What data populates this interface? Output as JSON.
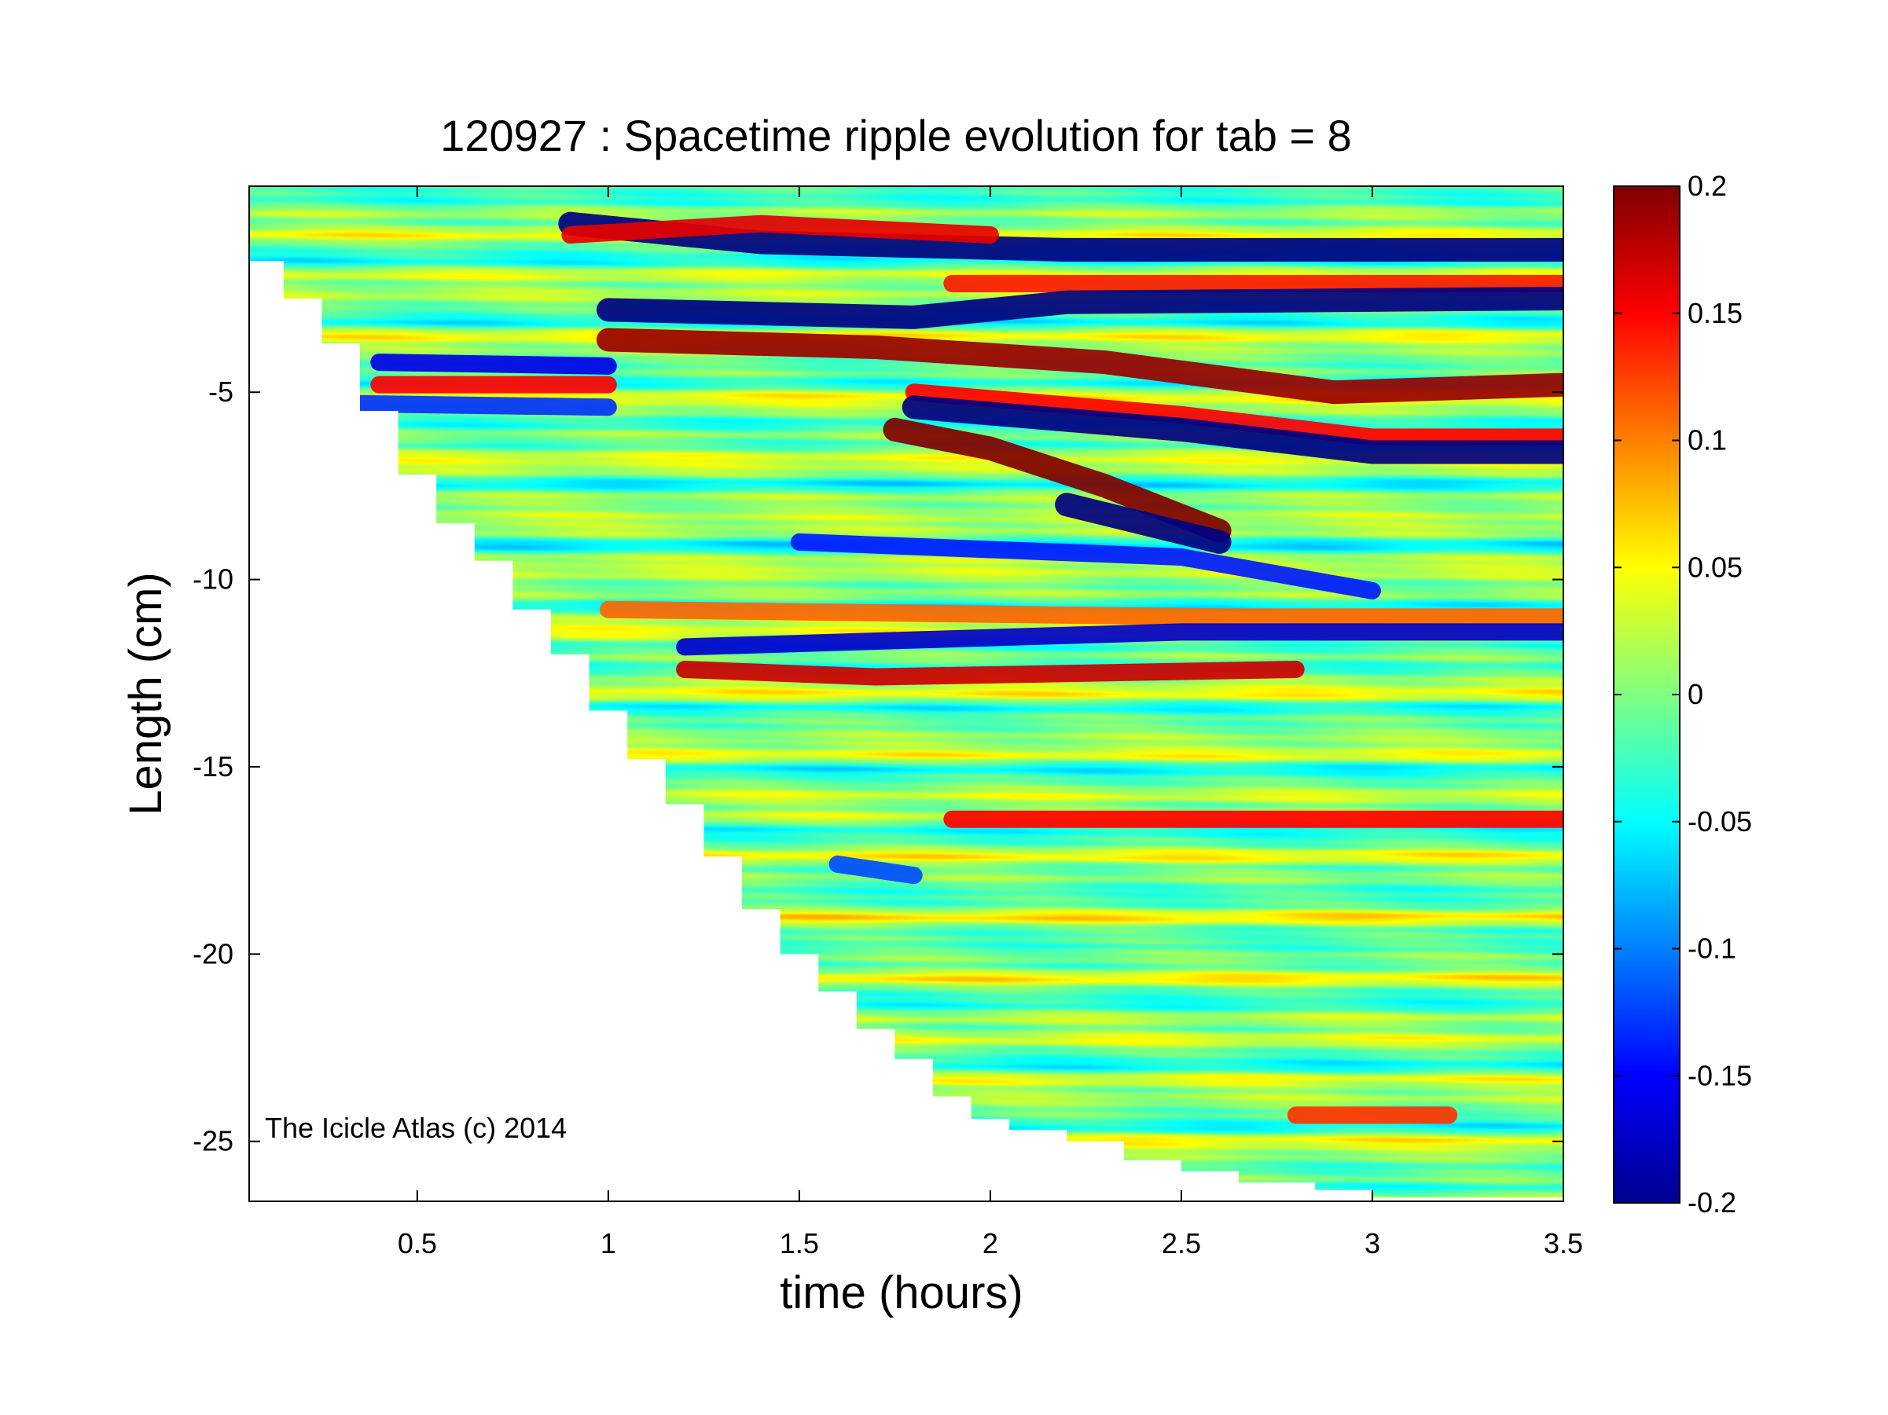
{
  "chart_data": {
    "type": "heatmap",
    "title": "120927 : Spacetime ripple evolution for tab = 8",
    "xlabel": "time (hours)",
    "ylabel": "Length (cm)",
    "annotation": "The Icicle Atlas (c) 2014",
    "xlim": [
      0.06,
      3.5
    ],
    "ylim": [
      -26.6,
      0.5
    ],
    "x_ticks": [
      0.5,
      1,
      1.5,
      2,
      2.5,
      3,
      3.5
    ],
    "x_tick_labels": [
      "0.5",
      "1",
      "1.5",
      "2",
      "2.5",
      "3",
      "3.5"
    ],
    "y_ticks": [
      -5,
      -10,
      -15,
      -20,
      -25
    ],
    "y_tick_labels": [
      "-5",
      "-10",
      "-15",
      "-20",
      "-25"
    ],
    "colorbar": {
      "colormap": "jet",
      "range": [
        -0.2,
        0.2
      ],
      "ticks": [
        0.2,
        0.15,
        0.1,
        0.05,
        0,
        -0.05,
        -0.1,
        -0.15,
        -0.2
      ],
      "tick_labels": [
        "0.2",
        "0.15",
        "0.1",
        "0.05",
        "0",
        "-0.05",
        "-0.1",
        "-0.15",
        "-0.2"
      ]
    },
    "boundary_length_vs_time": [
      [
        0.06,
        -1.5
      ],
      [
        0.15,
        -2.5
      ],
      [
        0.25,
        -3.7
      ],
      [
        0.35,
        -5.5
      ],
      [
        0.45,
        -7.2
      ],
      [
        0.55,
        -8.5
      ],
      [
        0.65,
        -9.5
      ],
      [
        0.75,
        -10.8
      ],
      [
        0.85,
        -12.0
      ],
      [
        0.95,
        -13.5
      ],
      [
        1.05,
        -14.8
      ],
      [
        1.15,
        -16.0
      ],
      [
        1.25,
        -17.4
      ],
      [
        1.35,
        -18.8
      ],
      [
        1.45,
        -20.0
      ],
      [
        1.55,
        -21.0
      ],
      [
        1.65,
        -22.0
      ],
      [
        1.75,
        -22.8
      ],
      [
        1.85,
        -23.8
      ],
      [
        1.95,
        -24.4
      ],
      [
        2.05,
        -24.7
      ],
      [
        2.2,
        -25.0
      ],
      [
        2.35,
        -25.5
      ],
      [
        2.5,
        -25.8
      ],
      [
        2.65,
        -26.1
      ],
      [
        2.85,
        -26.3
      ],
      [
        3.0,
        -26.5
      ],
      [
        3.5,
        -26.6
      ]
    ],
    "features": [
      {
        "kind": "line",
        "points": [
          [
            0.9,
            -0.5
          ],
          [
            1.4,
            -1.0
          ],
          [
            2.2,
            -1.2
          ],
          [
            3.5,
            -1.2
          ]
        ],
        "value": -0.2
      },
      {
        "kind": "line",
        "points": [
          [
            0.9,
            -0.8
          ],
          [
            1.4,
            -0.5
          ],
          [
            2.0,
            -0.8
          ]
        ],
        "value": 0.16
      },
      {
        "kind": "line",
        "points": [
          [
            1.9,
            -2.1
          ],
          [
            3.5,
            -2.1
          ]
        ],
        "value": 0.14
      },
      {
        "kind": "line",
        "points": [
          [
            1.0,
            -2.8
          ],
          [
            1.8,
            -3.0
          ],
          [
            2.2,
            -2.6
          ],
          [
            3.5,
            -2.5
          ]
        ],
        "value": -0.2
      },
      {
        "kind": "line",
        "points": [
          [
            1.0,
            -3.6
          ],
          [
            1.7,
            -3.8
          ],
          [
            2.3,
            -4.2
          ],
          [
            2.9,
            -5.0
          ],
          [
            3.5,
            -4.8
          ]
        ],
        "value": 0.19
      },
      {
        "kind": "line",
        "points": [
          [
            0.4,
            -4.2
          ],
          [
            1.0,
            -4.3
          ]
        ],
        "value": -0.16
      },
      {
        "kind": "line",
        "points": [
          [
            0.4,
            -4.8
          ],
          [
            1.0,
            -4.8
          ]
        ],
        "value": 0.15
      },
      {
        "kind": "line",
        "points": [
          [
            0.3,
            -5.3
          ],
          [
            1.0,
            -5.4
          ]
        ],
        "value": -0.13
      },
      {
        "kind": "line",
        "points": [
          [
            1.8,
            -5.0
          ],
          [
            2.5,
            -5.6
          ],
          [
            3.0,
            -6.2
          ],
          [
            3.5,
            -6.2
          ]
        ],
        "value": 0.15
      },
      {
        "kind": "line",
        "points": [
          [
            1.8,
            -5.4
          ],
          [
            2.5,
            -6.0
          ],
          [
            3.0,
            -6.6
          ],
          [
            3.5,
            -6.6
          ]
        ],
        "value": -0.2
      },
      {
        "kind": "line",
        "points": [
          [
            1.75,
            -6.0
          ],
          [
            2.0,
            -6.5
          ],
          [
            2.3,
            -7.5
          ],
          [
            2.6,
            -8.7
          ]
        ],
        "value": 0.2
      },
      {
        "kind": "line",
        "points": [
          [
            2.2,
            -8.0
          ],
          [
            2.6,
            -9.0
          ]
        ],
        "value": -0.2
      },
      {
        "kind": "line",
        "points": [
          [
            1.5,
            -9.0
          ],
          [
            2.5,
            -9.4
          ],
          [
            3.0,
            -10.3
          ]
        ],
        "value": -0.14
      },
      {
        "kind": "line",
        "points": [
          [
            1.0,
            -10.8
          ],
          [
            2.6,
            -11.0
          ],
          [
            3.5,
            -11.0
          ]
        ],
        "value": 0.11
      },
      {
        "kind": "line",
        "points": [
          [
            1.2,
            -11.8
          ],
          [
            2.5,
            -11.4
          ],
          [
            3.5,
            -11.4
          ]
        ],
        "value": -0.17
      },
      {
        "kind": "line",
        "points": [
          [
            1.2,
            -12.4
          ],
          [
            1.7,
            -12.6
          ],
          [
            2.8,
            -12.4
          ]
        ],
        "value": 0.17
      },
      {
        "kind": "line",
        "points": [
          [
            1.9,
            -16.4
          ],
          [
            3.5,
            -16.4
          ]
        ],
        "value": 0.15
      },
      {
        "kind": "line",
        "points": [
          [
            2.8,
            -24.3
          ],
          [
            3.2,
            -24.3
          ]
        ],
        "value": 0.13
      },
      {
        "kind": "line",
        "points": [
          [
            1.6,
            -17.6
          ],
          [
            1.8,
            -17.9
          ]
        ],
        "value": -0.12
      }
    ]
  }
}
